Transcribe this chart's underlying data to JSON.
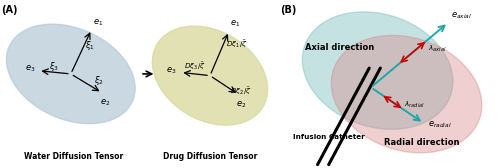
{
  "bg_color": "#ffffff",
  "panel_A_label": "(A)",
  "panel_B_label": "(B)",
  "water_ellipse_color": "#b8ccd8",
  "drug_ellipse_color": "#d8d89a",
  "water_label": "Water Diffusion Tensor",
  "drug_label": "Drug Diffusion Tensor",
  "axial_label": "Axial direction",
  "radial_label": "Radial direction",
  "catheter_label": "Infusion Catheter",
  "e_axial": "$e_{axial}$",
  "e_radial": "$e_{radial}$",
  "lambda_axial": "$\\lambda_{axial}$",
  "lambda_radial": "$\\lambda_{radial}$",
  "e1": "$e_1$",
  "e2": "$e_2$",
  "e3": "$e_3$",
  "xi1": "$\\xi_1$",
  "xi2": "$\\xi_2$",
  "xi3": "$\\xi_3$",
  "Dxi1": "$D\\xi_1/\\bar{\\zeta}$",
  "Dxi2": "$D\\xi_2/\\bar{\\zeta}$",
  "Dxi3": "$D\\xi_3/\\bar{\\zeta}$",
  "axial_ellipse_color": "#70b8b8",
  "radial_ellipse_color": "#d88888",
  "teal_arrow": "#20a8a8",
  "red_arrow": "#cc0000"
}
